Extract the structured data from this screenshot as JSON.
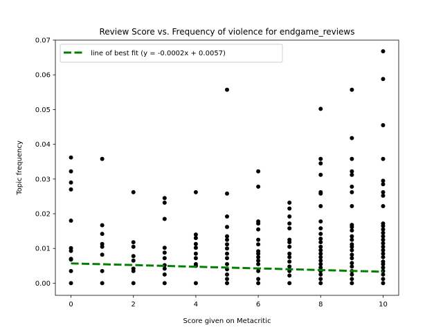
{
  "chart_data": {
    "type": "scatter",
    "title": "Review Score vs. Frequency of violence for endgame_reviews",
    "xlabel": "Score given on Metacritic",
    "ylabel": "Topic frequency",
    "xlim": [
      -0.5,
      10.5
    ],
    "ylim": [
      -0.0035,
      0.07
    ],
    "x_ticks": [
      "0",
      "2",
      "4",
      "6",
      "8",
      "10"
    ],
    "y_ticks": [
      "0.00",
      "0.01",
      "0.02",
      "0.03",
      "0.04",
      "0.05",
      "0.06",
      "0.07"
    ],
    "grid": false,
    "legend_position": "upper-left",
    "marker_color": "#000000",
    "series": [
      {
        "type": "scatter",
        "points": [
          {
            "x": 0,
            "y": 0
          },
          {
            "x": 0,
            "y": 0.0035
          },
          {
            "x": 0,
            "y": 0.0068
          },
          {
            "x": 0,
            "y": 0.007
          },
          {
            "x": 0,
            "y": 0.0093
          },
          {
            "x": 0,
            "y": 0.0101
          },
          {
            "x": 0,
            "y": 0.018
          },
          {
            "x": 0,
            "y": 0.027
          },
          {
            "x": 0,
            "y": 0.029
          },
          {
            "x": 0,
            "y": 0.0322
          },
          {
            "x": 0,
            "y": 0.0362
          },
          {
            "x": 1,
            "y": 0
          },
          {
            "x": 1,
            "y": 0.0035
          },
          {
            "x": 1,
            "y": 0.0082
          },
          {
            "x": 1,
            "y": 0.0105
          },
          {
            "x": 1,
            "y": 0.0113
          },
          {
            "x": 1,
            "y": 0.0142
          },
          {
            "x": 1,
            "y": 0.0167
          },
          {
            "x": 1,
            "y": 0.0358
          },
          {
            "x": 2,
            "y": 0
          },
          {
            "x": 2,
            "y": 0.0035
          },
          {
            "x": 2,
            "y": 0.0042
          },
          {
            "x": 2,
            "y": 0.0065
          },
          {
            "x": 2,
            "y": 0.0078
          },
          {
            "x": 2,
            "y": 0.0105
          },
          {
            "x": 2,
            "y": 0.0118
          },
          {
            "x": 2,
            "y": 0.0262
          },
          {
            "x": 3,
            "y": 0
          },
          {
            "x": 3,
            "y": 0.0025
          },
          {
            "x": 3,
            "y": 0.0042
          },
          {
            "x": 3,
            "y": 0.0052
          },
          {
            "x": 3,
            "y": 0.0072
          },
          {
            "x": 3,
            "y": 0.0088
          },
          {
            "x": 3,
            "y": 0.0102
          },
          {
            "x": 3,
            "y": 0.0185
          },
          {
            "x": 3,
            "y": 0.0232
          },
          {
            "x": 3,
            "y": 0.0245
          },
          {
            "x": 4,
            "y": 0
          },
          {
            "x": 4,
            "y": 0.005
          },
          {
            "x": 4,
            "y": 0.0055
          },
          {
            "x": 4,
            "y": 0.0072
          },
          {
            "x": 4,
            "y": 0.0085
          },
          {
            "x": 4,
            "y": 0.0102
          },
          {
            "x": 4,
            "y": 0.0113
          },
          {
            "x": 4,
            "y": 0.013
          },
          {
            "x": 4,
            "y": 0.014
          },
          {
            "x": 4,
            "y": 0.0262
          },
          {
            "x": 5,
            "y": 0
          },
          {
            "x": 5,
            "y": 0.0012
          },
          {
            "x": 5,
            "y": 0.0025
          },
          {
            "x": 5,
            "y": 0.004
          },
          {
            "x": 5,
            "y": 0.0055
          },
          {
            "x": 5,
            "y": 0.0072
          },
          {
            "x": 5,
            "y": 0.0085
          },
          {
            "x": 5,
            "y": 0.01
          },
          {
            "x": 5,
            "y": 0.0112
          },
          {
            "x": 5,
            "y": 0.0125
          },
          {
            "x": 5,
            "y": 0.0135
          },
          {
            "x": 5,
            "y": 0.0162
          },
          {
            "x": 5,
            "y": 0.0192
          },
          {
            "x": 5,
            "y": 0.0258
          },
          {
            "x": 5,
            "y": 0.0557
          },
          {
            "x": 6,
            "y": 0
          },
          {
            "x": 6,
            "y": 0.0012
          },
          {
            "x": 6,
            "y": 0.0035
          },
          {
            "x": 6,
            "y": 0.0055
          },
          {
            "x": 6,
            "y": 0.0065
          },
          {
            "x": 6,
            "y": 0.0075
          },
          {
            "x": 6,
            "y": 0.0085
          },
          {
            "x": 6,
            "y": 0.0092
          },
          {
            "x": 6,
            "y": 0.0112
          },
          {
            "x": 6,
            "y": 0.0125
          },
          {
            "x": 6,
            "y": 0.0155
          },
          {
            "x": 6,
            "y": 0.0172
          },
          {
            "x": 6,
            "y": 0.0178
          },
          {
            "x": 6,
            "y": 0.0278
          },
          {
            "x": 6,
            "y": 0.0322
          },
          {
            "x": 7,
            "y": 0
          },
          {
            "x": 7,
            "y": 0.0022
          },
          {
            "x": 7,
            "y": 0.0035
          },
          {
            "x": 7,
            "y": 0.0048
          },
          {
            "x": 7,
            "y": 0.0062
          },
          {
            "x": 7,
            "y": 0.0075
          },
          {
            "x": 7,
            "y": 0.0085
          },
          {
            "x": 7,
            "y": 0.0105
          },
          {
            "x": 7,
            "y": 0.0118
          },
          {
            "x": 7,
            "y": 0.0125
          },
          {
            "x": 7,
            "y": 0.0158
          },
          {
            "x": 7,
            "y": 0.0172
          },
          {
            "x": 7,
            "y": 0.0192
          },
          {
            "x": 7,
            "y": 0.0215
          },
          {
            "x": 7,
            "y": 0.0232
          },
          {
            "x": 8,
            "y": 0
          },
          {
            "x": 8,
            "y": 0.0012
          },
          {
            "x": 8,
            "y": 0.0025
          },
          {
            "x": 8,
            "y": 0.0035
          },
          {
            "x": 8,
            "y": 0.0045
          },
          {
            "x": 8,
            "y": 0.0055
          },
          {
            "x": 8,
            "y": 0.0065
          },
          {
            "x": 8,
            "y": 0.0075
          },
          {
            "x": 8,
            "y": 0.0085
          },
          {
            "x": 8,
            "y": 0.0095
          },
          {
            "x": 8,
            "y": 0.0105
          },
          {
            "x": 8,
            "y": 0.0118
          },
          {
            "x": 8,
            "y": 0.0128
          },
          {
            "x": 8,
            "y": 0.0142
          },
          {
            "x": 8,
            "y": 0.0158
          },
          {
            "x": 8,
            "y": 0.0178
          },
          {
            "x": 8,
            "y": 0.0222
          },
          {
            "x": 8,
            "y": 0.0258
          },
          {
            "x": 8,
            "y": 0.0262
          },
          {
            "x": 8,
            "y": 0.0312
          },
          {
            "x": 8,
            "y": 0.0345
          },
          {
            "x": 8,
            "y": 0.0358
          },
          {
            "x": 8,
            "y": 0.0502
          },
          {
            "x": 9,
            "y": 0
          },
          {
            "x": 9,
            "y": 0.0012
          },
          {
            "x": 9,
            "y": 0.0025
          },
          {
            "x": 9,
            "y": 0.0035
          },
          {
            "x": 9,
            "y": 0.0048
          },
          {
            "x": 9,
            "y": 0.0058
          },
          {
            "x": 9,
            "y": 0.0072
          },
          {
            "x": 9,
            "y": 0.0082
          },
          {
            "x": 9,
            "y": 0.0095
          },
          {
            "x": 9,
            "y": 0.0105
          },
          {
            "x": 9,
            "y": 0.0112
          },
          {
            "x": 9,
            "y": 0.0125
          },
          {
            "x": 9,
            "y": 0.0135
          },
          {
            "x": 9,
            "y": 0.0152
          },
          {
            "x": 9,
            "y": 0.0162
          },
          {
            "x": 9,
            "y": 0.0168
          },
          {
            "x": 9,
            "y": 0.0222
          },
          {
            "x": 9,
            "y": 0.0262
          },
          {
            "x": 9,
            "y": 0.0278
          },
          {
            "x": 9,
            "y": 0.0312
          },
          {
            "x": 9,
            "y": 0.0322
          },
          {
            "x": 9,
            "y": 0.0358
          },
          {
            "x": 9,
            "y": 0.0418
          },
          {
            "x": 9,
            "y": 0.0557
          },
          {
            "x": 10,
            "y": 0
          },
          {
            "x": 10,
            "y": 0.0012
          },
          {
            "x": 10,
            "y": 0.0025
          },
          {
            "x": 10,
            "y": 0.0035
          },
          {
            "x": 10,
            "y": 0.0045
          },
          {
            "x": 10,
            "y": 0.0055
          },
          {
            "x": 10,
            "y": 0.0062
          },
          {
            "x": 10,
            "y": 0.0075
          },
          {
            "x": 10,
            "y": 0.0085
          },
          {
            "x": 10,
            "y": 0.0095
          },
          {
            "x": 10,
            "y": 0.0105
          },
          {
            "x": 10,
            "y": 0.0115
          },
          {
            "x": 10,
            "y": 0.0125
          },
          {
            "x": 10,
            "y": 0.0135
          },
          {
            "x": 10,
            "y": 0.0145
          },
          {
            "x": 10,
            "y": 0.0155
          },
          {
            "x": 10,
            "y": 0.0165
          },
          {
            "x": 10,
            "y": 0.0172
          },
          {
            "x": 10,
            "y": 0.0222
          },
          {
            "x": 10,
            "y": 0.0252
          },
          {
            "x": 10,
            "y": 0.0262
          },
          {
            "x": 10,
            "y": 0.0285
          },
          {
            "x": 10,
            "y": 0.0295
          },
          {
            "x": 10,
            "y": 0.0358
          },
          {
            "x": 10,
            "y": 0.0455
          },
          {
            "x": 10,
            "y": 0.0588
          },
          {
            "x": 10,
            "y": 0.0668
          }
        ]
      },
      {
        "name": "line of best fit (y = -0.0002x + 0.0057)",
        "type": "line",
        "style": "dashed",
        "color": "#008000",
        "slope": -0.0002,
        "intercept": 0.0057,
        "x": [
          0,
          10
        ],
        "y": [
          0.0057,
          0.0033
        ]
      }
    ]
  }
}
